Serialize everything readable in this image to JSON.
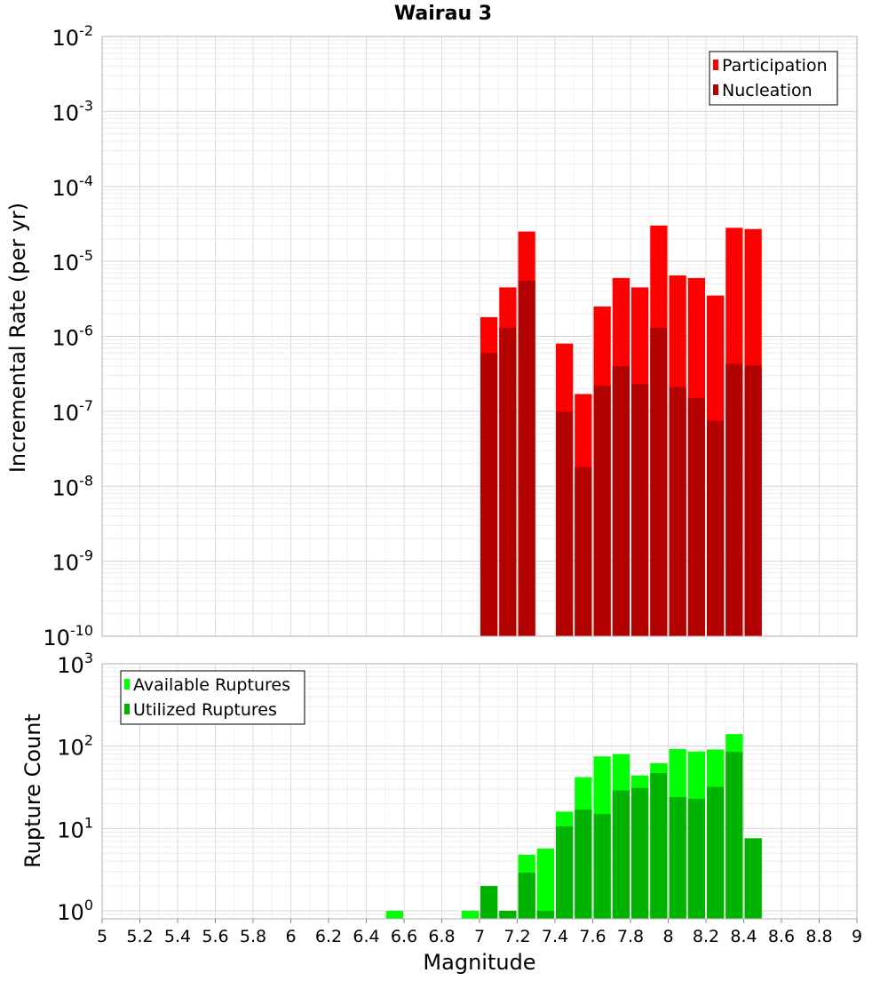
{
  "chart_data": [
    {
      "type": "bar",
      "title": "Wairau 3",
      "ylabel": "Incremental Rate (per yr)",
      "xlabel": "",
      "xlim": [
        5,
        9
      ],
      "ylim": [
        1e-10,
        0.01
      ],
      "yscale": "log",
      "grid": true,
      "legend_position": "top-right",
      "bin_width": 0.1,
      "y_tick_exponents": [
        -10,
        -9,
        -8,
        -7,
        -6,
        -5,
        -4,
        -3,
        -2
      ],
      "y_tick_base": "10",
      "x": [
        7.05,
        7.15,
        7.25,
        7.45,
        7.55,
        7.65,
        7.75,
        7.85,
        7.95,
        8.05,
        8.15,
        8.25,
        8.35,
        8.45
      ],
      "series": [
        {
          "name": "Participation",
          "color": "#ff0000",
          "values": [
            1.8e-06,
            4.5e-06,
            2.5e-05,
            8e-07,
            1.7e-07,
            2.5e-06,
            6e-06,
            4.5e-06,
            3e-05,
            6.5e-06,
            6e-06,
            3.5e-06,
            2.8e-05,
            2.7e-05
          ]
        },
        {
          "name": "Nucleation",
          "color": "#b30000",
          "values": [
            6e-07,
            1.3e-06,
            5.5e-06,
            1e-07,
            1.8e-08,
            2.2e-07,
            4e-07,
            2.3e-07,
            1.3e-06,
            2.1e-07,
            1.5e-07,
            7.5e-08,
            4.3e-07,
            4.1e-07
          ]
        }
      ]
    },
    {
      "type": "bar",
      "title": "",
      "ylabel": "Rupture Count",
      "xlabel": "Magnitude",
      "xlim": [
        5,
        9
      ],
      "ylim": [
        0.8,
        1000
      ],
      "yscale": "log",
      "grid": true,
      "legend_position": "top-left",
      "bin_width": 0.1,
      "y_tick_exponents": [
        0,
        1,
        2,
        3
      ],
      "y_tick_base": "10",
      "x_ticks": [
        "5",
        "5.2",
        "5.4",
        "5.6",
        "5.8",
        "6",
        "6.2",
        "6.4",
        "6.6",
        "6.8",
        "7",
        "7.2",
        "7.4",
        "7.6",
        "7.8",
        "8",
        "8.2",
        "8.4",
        "8.6",
        "8.8",
        "9"
      ],
      "x": [
        6.55,
        6.95,
        7.05,
        7.15,
        7.25,
        7.35,
        7.45,
        7.55,
        7.65,
        7.75,
        7.85,
        7.95,
        8.05,
        8.15,
        8.25,
        8.35,
        8.45
      ],
      "series": [
        {
          "name": "Available Ruptures",
          "color": "#00ff00",
          "values": [
            1,
            1,
            2,
            1,
            4.8,
            5.7,
            16,
            42,
            75,
            80,
            44,
            62,
            92,
            86,
            91,
            140,
            7.6
          ]
        },
        {
          "name": "Utilized Ruptures",
          "color": "#00b300",
          "values": [
            0,
            0,
            2,
            1,
            2.9,
            1,
            10.6,
            17,
            15,
            29,
            31,
            47,
            24,
            23,
            32,
            85,
            7.6
          ]
        }
      ]
    }
  ]
}
